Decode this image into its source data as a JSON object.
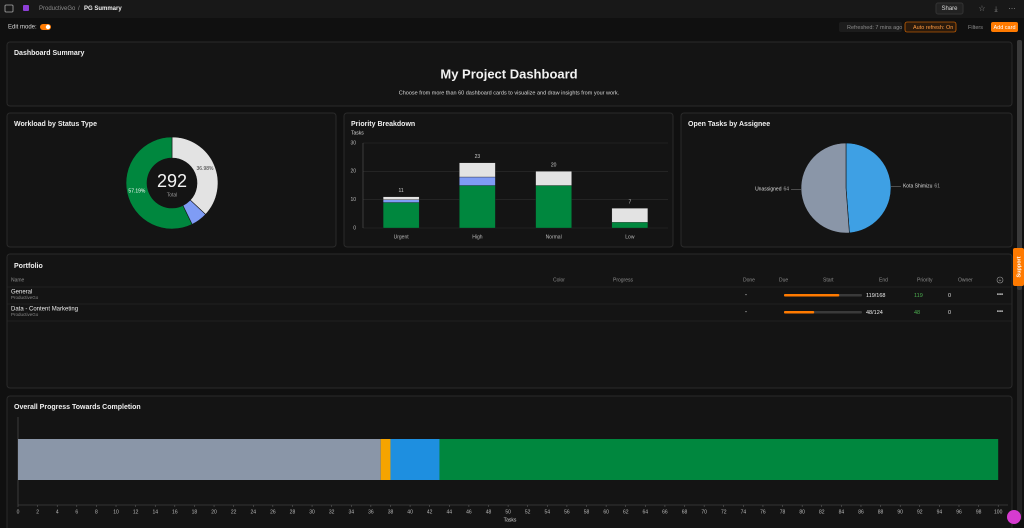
{
  "header": {
    "workspace": "ProductiveGo",
    "page": "PG Summary",
    "share": "Share"
  },
  "toolbar": {
    "edit_mode": "Edit mode:",
    "refreshed": "Refreshed: 7 mins ago",
    "auto_refresh": "Auto refresh: On",
    "filters": "Filters",
    "add_card": "Add card"
  },
  "summary": {
    "card_title": "Dashboard Summary",
    "title": "My Project Dashboard",
    "subtitle": "Choose from more than 60 dashboard cards to visualize and draw insights from your work."
  },
  "workload": {
    "type": "donut",
    "title": "Workload by Status Type",
    "total": 292,
    "total_label": "Total",
    "values": [
      36.98,
      5.83,
      57.19
    ],
    "value_labels": [
      "36.98%",
      null,
      "57.19%"
    ],
    "colors": [
      "#e3e3e3",
      "#7f9cf5",
      "#00873e"
    ]
  },
  "priority": {
    "type": "stacked-bar",
    "title": "Priority Breakdown",
    "y_label": "Tasks",
    "categories": [
      "Urgent",
      "High",
      "Normal",
      "Low"
    ],
    "series": [
      {
        "color": "#00873e",
        "values": [
          9,
          15,
          15,
          2
        ]
      },
      {
        "color": "#7f9cf5",
        "values": [
          1,
          3,
          0,
          0
        ]
      },
      {
        "color": "#e3e3e3",
        "values": [
          1,
          5,
          5,
          5
        ]
      }
    ],
    "totals": [
      11,
      23,
      20,
      7
    ],
    "ylim": [
      0,
      30
    ],
    "yticks": [
      0,
      10,
      20,
      30
    ],
    "grid": true
  },
  "assignee": {
    "type": "pie",
    "title": "Open Tasks by Assignee",
    "categories": [
      "Kota Shimizu",
      "Unassigned"
    ],
    "values": [
      61,
      64
    ],
    "colors": [
      "#3ea0e4",
      "#8a96a8"
    ]
  },
  "portfolio": {
    "title": "Portfolio",
    "columns": [
      "Name",
      "Color",
      "Progress",
      "Done",
      "Due",
      "Start",
      "End",
      "Priority",
      "Owner"
    ],
    "rows": [
      {
        "name": "General",
        "workspace": "ProductiveGo",
        "done": "-",
        "completed": 119,
        "total": 168,
        "progress_label": "119/168",
        "owner": 0
      },
      {
        "name": "Data - Content Marketing",
        "workspace": "ProductiveGo",
        "done": "-",
        "completed": 48,
        "total": 124,
        "progress_label": "48/124",
        "owner": 0
      }
    ]
  },
  "progress": {
    "type": "horizontal-stacked-bar",
    "title": "Overall Progress Towards Completion",
    "x_label": "Tasks",
    "values": [
      37,
      1,
      5,
      57
    ],
    "colors": [
      "#8a96a8",
      "#f5a400",
      "#1e8fe0",
      "#00873e"
    ],
    "xlim": [
      0,
      101
    ],
    "xticks": [
      0,
      2,
      4,
      6,
      8,
      10,
      12,
      14,
      16,
      18,
      20,
      22,
      24,
      26,
      28,
      30,
      32,
      34,
      36,
      38,
      40,
      42,
      44,
      46,
      48,
      50,
      52,
      54,
      56,
      58,
      60,
      62,
      64,
      66,
      68,
      70,
      72,
      74,
      76,
      78,
      80,
      82,
      84,
      86,
      88,
      90,
      92,
      94,
      96,
      98,
      100
    ]
  }
}
